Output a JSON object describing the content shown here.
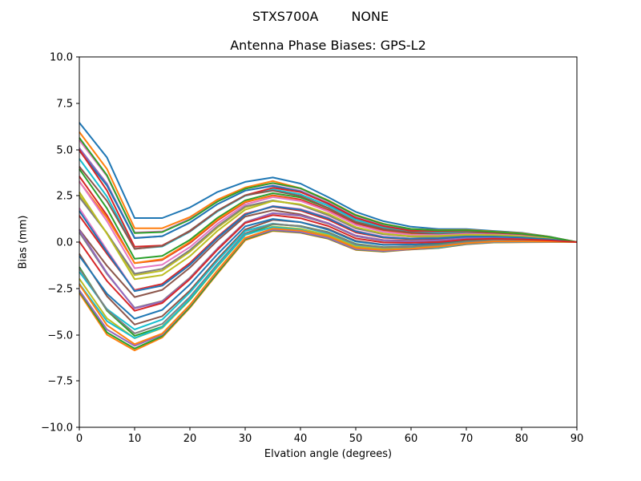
{
  "figure": {
    "suptitle_left": "STXS700A",
    "suptitle_right": "NONE",
    "background": "#ffffff",
    "axis_color": "#000000"
  },
  "chart_data": {
    "type": "line",
    "title": "Antenna Phase Biases: GPS-L2",
    "xlabel": "Elvation angle (degrees)",
    "ylabel": "Bias (mm)",
    "xlim": [
      0,
      90
    ],
    "ylim": [
      -10,
      10
    ],
    "grid": false,
    "legend": "none",
    "xticks": [
      0,
      10,
      20,
      30,
      40,
      50,
      60,
      70,
      80,
      90
    ],
    "xtick_labels": [
      "0",
      "10",
      "20",
      "30",
      "40",
      "50",
      "60",
      "70",
      "80",
      "90"
    ],
    "yticks": [
      10,
      7.5,
      5,
      2.5,
      0,
      -2.5,
      -5,
      -7.5,
      -10
    ],
    "ytick_labels": [
      "10.0",
      "7.5",
      "5.0",
      "2.5",
      "0.0",
      "−2.5",
      "−5.0",
      "−7.5",
      "−10.0"
    ],
    "x": [
      0,
      5,
      10,
      15,
      20,
      25,
      30,
      35,
      40,
      45,
      50,
      55,
      60,
      65,
      70,
      75,
      80,
      85,
      90
    ],
    "series": [
      {
        "name": "line-01",
        "color": "#1f77b4",
        "values": [
          6.45,
          4.57,
          1.3,
          1.3,
          1.87,
          2.71,
          3.25,
          3.49,
          3.16,
          2.43,
          1.63,
          1.13,
          0.83,
          0.7,
          0.7,
          0.6,
          0.5,
          0.3,
          0.0
        ]
      },
      {
        "name": "line-02",
        "color": "#ff7f0e",
        "values": [
          -2.75,
          -5.0,
          -5.85,
          -5.15,
          -3.55,
          -1.7,
          0.1,
          0.6,
          0.5,
          0.18,
          -0.42,
          -0.52,
          -0.4,
          -0.32,
          -0.12,
          -0.02,
          -0.01,
          0.0,
          0.0
        ]
      },
      {
        "name": "line-03",
        "color": "#2ca02c",
        "values": [
          -2.65,
          -4.88,
          -5.75,
          -5.08,
          -3.5,
          -1.65,
          0.15,
          0.63,
          0.52,
          0.2,
          -0.4,
          -0.5,
          -0.39,
          -0.31,
          -0.11,
          -0.01,
          0.0,
          0.0,
          0.0
        ]
      },
      {
        "name": "line-04",
        "color": "#d62728",
        "values": [
          1.43,
          -0.63,
          -2.59,
          -2.26,
          -1.13,
          0.3,
          1.53,
          1.91,
          1.7,
          1.21,
          0.52,
          0.24,
          0.16,
          0.15,
          0.26,
          0.27,
          0.23,
          0.14,
          0.0
        ]
      },
      {
        "name": "line-05",
        "color": "#9467bd",
        "values": [
          5.08,
          3.15,
          0.23,
          0.32,
          1.05,
          2.05,
          2.78,
          3.06,
          2.76,
          2.1,
          1.33,
          0.89,
          0.65,
          0.55,
          0.58,
          0.51,
          0.43,
          0.26,
          0.0
        ]
      },
      {
        "name": "line-06",
        "color": "#8c564b",
        "values": [
          -0.63,
          -2.92,
          -4.45,
          -4.0,
          -2.62,
          -0.9,
          0.68,
          1.2,
          1.08,
          0.72,
          0.07,
          -0.14,
          -0.14,
          -0.05,
          0.1,
          0.15,
          0.13,
          0.08,
          0.0
        ]
      },
      {
        "name": "line-07",
        "color": "#e377c2",
        "values": [
          5.5,
          3.56,
          0.52,
          0.58,
          1.26,
          2.22,
          2.9,
          3.18,
          2.88,
          2.2,
          1.42,
          0.96,
          0.7,
          0.6,
          0.62,
          0.54,
          0.45,
          0.27,
          0.0
        ]
      },
      {
        "name": "line-08",
        "color": "#7f7f7f",
        "values": [
          0.53,
          -1.72,
          -3.55,
          -3.18,
          -1.92,
          -0.34,
          1.08,
          1.56,
          1.42,
          1.0,
          0.32,
          0.07,
          0.02,
          0.08,
          0.2,
          0.23,
          0.19,
          0.11,
          0.0
        ]
      },
      {
        "name": "line-09",
        "color": "#bcbd22",
        "values": [
          2.53,
          0.48,
          -1.79,
          -1.54,
          -0.52,
          0.79,
          1.88,
          2.24,
          2.02,
          1.48,
          0.76,
          0.43,
          0.3,
          0.28,
          0.36,
          0.35,
          0.29,
          0.17,
          0.0
        ]
      },
      {
        "name": "line-10",
        "color": "#17becf",
        "values": [
          -1.6,
          -3.62,
          -4.72,
          -4.18,
          -2.72,
          -1.0,
          0.6,
          1.0,
          0.84,
          0.46,
          -0.16,
          -0.3,
          -0.24,
          -0.2,
          -0.02,
          0.06,
          0.05,
          0.03,
          0.0
        ]
      },
      {
        "name": "line-11",
        "color": "#1f77b4",
        "values": [
          4.93,
          3.05,
          0.21,
          0.32,
          1.05,
          2.05,
          2.78,
          3.03,
          2.73,
          2.06,
          1.29,
          0.86,
          0.63,
          0.53,
          0.56,
          0.5,
          0.41,
          0.25,
          0.0
        ]
      },
      {
        "name": "line-12",
        "color": "#8c564b",
        "values": [
          0.68,
          -1.28,
          -2.97,
          -2.58,
          -1.38,
          0.09,
          1.38,
          1.72,
          1.5,
          1.02,
          0.35,
          0.11,
          0.07,
          0.05,
          0.18,
          0.21,
          0.18,
          0.11,
          0.0
        ]
      },
      {
        "name": "line-13",
        "color": "#2ca02c",
        "values": [
          3.95,
          1.82,
          -0.9,
          -0.75,
          0.12,
          1.31,
          2.25,
          2.64,
          2.41,
          1.83,
          1.08,
          0.68,
          0.48,
          0.45,
          0.5,
          0.45,
          0.38,
          0.23,
          0.0
        ]
      },
      {
        "name": "line-14",
        "color": "#d62728",
        "values": [
          3.55,
          1.45,
          -1.14,
          -0.96,
          -0.05,
          1.17,
          2.15,
          2.53,
          2.3,
          1.73,
          0.99,
          0.61,
          0.43,
          0.4,
          0.46,
          0.42,
          0.35,
          0.21,
          0.0
        ]
      },
      {
        "name": "line-15",
        "color": "#9467bd",
        "values": [
          -2.6,
          -4.72,
          -5.6,
          -5.0,
          -3.42,
          -1.56,
          0.2,
          0.66,
          0.54,
          0.22,
          -0.38,
          -0.48,
          -0.38,
          -0.3,
          -0.1,
          0.0,
          0.0,
          0.0,
          0.0
        ]
      },
      {
        "name": "line-16",
        "color": "#ff7f0e",
        "values": [
          5.95,
          3.95,
          0.75,
          0.75,
          1.35,
          2.3,
          2.95,
          3.3,
          2.91,
          2.26,
          1.47,
          0.99,
          0.71,
          0.65,
          0.66,
          0.57,
          0.48,
          0.29,
          0.0
        ]
      },
      {
        "name": "line-17",
        "color": "#e377c2",
        "values": [
          1.83,
          -0.43,
          -2.63,
          -2.35,
          -1.23,
          0.23,
          1.48,
          1.95,
          1.79,
          1.32,
          0.61,
          0.3,
          0.19,
          0.23,
          0.32,
          0.32,
          0.26,
          0.16,
          0.0
        ]
      },
      {
        "name": "line-18",
        "color": "#7f7f7f",
        "values": [
          2.43,
          0.48,
          -1.71,
          -1.44,
          -0.43,
          0.86,
          1.93,
          2.25,
          2.0,
          1.45,
          0.74,
          0.42,
          0.3,
          0.25,
          0.34,
          0.33,
          0.28,
          0.17,
          0.0
        ]
      },
      {
        "name": "line-19",
        "color": "#bcbd22",
        "values": [
          -1.98,
          -4.12,
          -5.19,
          -4.64,
          -3.12,
          -1.32,
          0.38,
          0.84,
          0.72,
          0.38,
          -0.24,
          -0.37,
          -0.3,
          -0.23,
          -0.04,
          0.05,
          0.04,
          0.02,
          0.0
        ]
      },
      {
        "name": "line-20",
        "color": "#17becf",
        "values": [
          4.5,
          2.46,
          -0.36,
          -0.24,
          0.56,
          1.66,
          2.5,
          2.84,
          2.58,
          1.96,
          1.2,
          0.78,
          0.56,
          0.5,
          0.54,
          0.48,
          0.4,
          0.24,
          0.0
        ]
      },
      {
        "name": "line-21",
        "color": "#1f77b4",
        "values": [
          -0.75,
          -2.79,
          -4.14,
          -3.66,
          -2.29,
          -0.65,
          0.85,
          1.25,
          1.08,
          0.67,
          0.03,
          -0.15,
          -0.13,
          -0.1,
          0.06,
          0.12,
          0.1,
          0.06,
          0.0
        ]
      },
      {
        "name": "line-22",
        "color": "#ff7f0e",
        "values": [
          3.27,
          1.31,
          -1.13,
          -0.92,
          0.01,
          1.21,
          2.18,
          2.5,
          2.24,
          1.66,
          0.93,
          0.57,
          0.41,
          0.35,
          0.42,
          0.39,
          0.33,
          0.2,
          0.0
        ]
      },
      {
        "name": "line-23",
        "color": "#2ca02c",
        "values": [
          -1.35,
          -3.7,
          -5.06,
          -4.57,
          -3.1,
          -1.28,
          0.4,
          0.96,
          0.87,
          0.54,
          -0.1,
          -0.27,
          -0.24,
          -0.13,
          0.04,
          0.11,
          0.09,
          0.05,
          0.0
        ]
      },
      {
        "name": "line-24",
        "color": "#d62728",
        "values": [
          4.98,
          2.79,
          -0.25,
          -0.18,
          0.59,
          1.7,
          2.53,
          2.93,
          2.7,
          2.09,
          1.31,
          0.86,
          0.61,
          0.58,
          0.6,
          0.52,
          0.44,
          0.26,
          0.0
        ]
      },
      {
        "name": "line-25",
        "color": "#9467bd",
        "values": [
          0.65,
          -1.67,
          -3.58,
          -3.22,
          -1.97,
          -0.37,
          1.05,
          1.57,
          1.44,
          1.03,
          0.35,
          0.09,
          0.03,
          0.1,
          0.22,
          0.24,
          0.2,
          0.12,
          0.0
        ]
      },
      {
        "name": "line-26",
        "color": "#8c564b",
        "values": [
          4.08,
          2.22,
          -0.37,
          -0.21,
          0.62,
          1.7,
          2.53,
          2.78,
          2.49,
          1.85,
          1.1,
          0.71,
          0.52,
          0.43,
          0.48,
          0.44,
          0.36,
          0.22,
          0.0
        ]
      },
      {
        "name": "line-27",
        "color": "#e377c2",
        "values": [
          3.28,
          1.13,
          -1.41,
          -1.22,
          -0.27,
          1.0,
          2.03,
          2.43,
          2.22,
          1.67,
          0.93,
          0.56,
          0.39,
          0.38,
          0.44,
          0.41,
          0.34,
          0.2,
          0.0
        ]
      },
      {
        "name": "line-28",
        "color": "#7f7f7f",
        "values": [
          -1.43,
          -3.66,
          -4.93,
          -4.42,
          -2.96,
          -1.18,
          0.48,
          0.98,
          0.86,
          0.52,
          -0.12,
          -0.28,
          -0.24,
          -0.15,
          0.02,
          0.09,
          0.08,
          0.05,
          0.0
        ]
      },
      {
        "name": "line-29",
        "color": "#bcbd22",
        "values": [
          2.7,
          0.45,
          -2.0,
          -1.78,
          -0.76,
          0.61,
          1.75,
          2.22,
          2.04,
          1.53,
          0.81,
          0.46,
          0.31,
          0.33,
          0.4,
          0.38,
          0.31,
          0.19,
          0.0
        ]
      },
      {
        "name": "line-30",
        "color": "#17becf",
        "values": [
          -2.25,
          -4.27,
          -5.18,
          -4.6,
          -3.07,
          -1.28,
          0.4,
          0.81,
          0.66,
          0.3,
          -0.31,
          -0.42,
          -0.33,
          -0.28,
          -0.08,
          0.02,
          0.01,
          0.01,
          0.0
        ]
      },
      {
        "name": "line-31",
        "color": "#1f77b4",
        "values": [
          1.68,
          -0.53,
          -2.65,
          -2.35,
          -1.23,
          0.23,
          1.48,
          1.93,
          1.75,
          1.28,
          0.58,
          0.26,
          0.18,
          0.2,
          0.3,
          0.3,
          0.25,
          0.15,
          0.0
        ]
      },
      {
        "name": "line-32",
        "color": "#ff7f0e",
        "values": [
          -2.28,
          -4.49,
          -5.51,
          -4.94,
          -3.39,
          -1.53,
          0.23,
          0.73,
          0.62,
          0.31,
          -0.31,
          -0.43,
          -0.35,
          -0.25,
          -0.06,
          0.03,
          0.03,
          0.02,
          0.0
        ]
      },
      {
        "name": "line-33",
        "color": "#2ca02c",
        "values": [
          5.63,
          3.61,
          0.49,
          0.54,
          1.21,
          2.19,
          2.88,
          3.19,
          2.91,
          2.24,
          1.45,
          0.98,
          0.71,
          0.63,
          0.64,
          0.56,
          0.46,
          0.28,
          0.0
        ]
      },
      {
        "name": "line-34",
        "color": "#d62728",
        "values": [
          0.03,
          -2.1,
          -3.71,
          -3.29,
          -2.0,
          -0.41,
          1.03,
          1.46,
          1.29,
          0.87,
          0.2,
          -0.02,
          -0.04,
          0.0,
          0.14,
          0.18,
          0.15,
          0.09,
          0.0
        ]
      }
    ]
  }
}
